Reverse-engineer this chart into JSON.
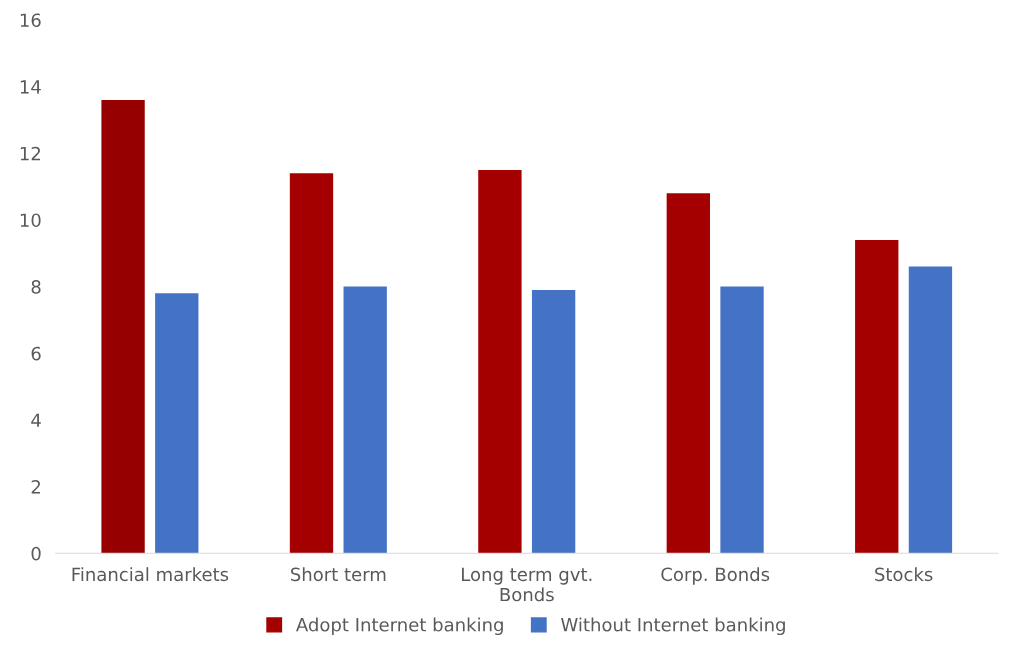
{
  "chart_data": {
    "type": "bar",
    "categories": [
      "Financial markets",
      "Short term",
      "Long term gvt.\nBonds",
      "Corp. Bonds",
      "Stocks"
    ],
    "series": [
      {
        "name": "Adopt Internet banking",
        "color": "#a50000",
        "colors": [
          "#960000",
          "#a50000",
          "#a50000",
          "#a50000",
          "#a50000"
        ],
        "values": [
          13.6,
          11.4,
          11.5,
          10.8,
          9.4
        ]
      },
      {
        "name": "Without Internet banking",
        "color": "#4472c4",
        "values": [
          7.8,
          8.0,
          7.9,
          8.0,
          8.6
        ]
      }
    ],
    "ylim": [
      0,
      16
    ],
    "yticks": [
      0,
      2,
      4,
      6,
      8,
      10,
      12,
      14,
      16
    ],
    "grid": false,
    "legend": "bottom"
  }
}
